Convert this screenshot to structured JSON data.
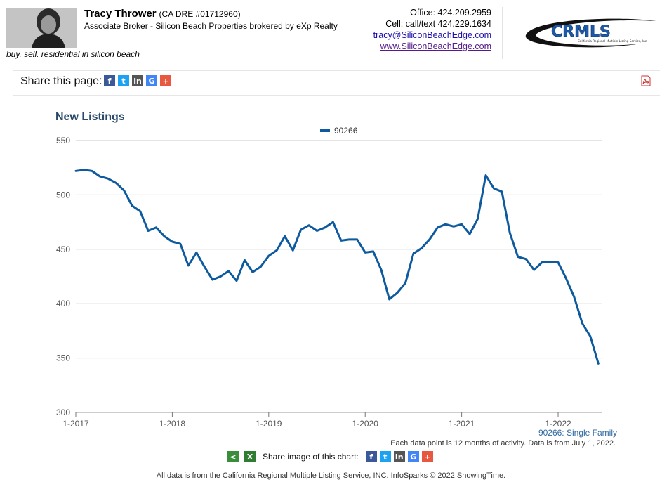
{
  "agent": {
    "name": "Tracy Thrower",
    "license": "(CA DRE #01712960)",
    "title": "Associate Broker - Silicon Beach Properties brokered by eXp Realty",
    "tagline": "buy. sell. residential in silicon beach",
    "office": "Office: 424.209.2959",
    "cell": "Cell: call/text 424.229.1634",
    "email": "tracy@SiliconBeachEdge.com",
    "website": "www.SiliconBeachEdge.com"
  },
  "logo": {
    "text": "CRMLS",
    "subtext": "California Regional Multiple Listing Service, Inc."
  },
  "share_bar": {
    "label": "Share this page:",
    "icons": [
      "facebook-icon",
      "twitter-icon",
      "linkedin-icon",
      "google-icon",
      "more-icon"
    ]
  },
  "chart_data": {
    "type": "line",
    "title": "New Listings",
    "xlabel": "",
    "ylabel": "",
    "ylim": [
      300,
      550
    ],
    "y_ticks": [
      300,
      350,
      400,
      450,
      500,
      550
    ],
    "x_ticks": [
      "1-2017",
      "1-2018",
      "1-2019",
      "1-2020",
      "1-2021",
      "1-2022"
    ],
    "x_start": "1-2017",
    "x_end": "6-2022",
    "grid": true,
    "legend_position": "top-center",
    "series": [
      {
        "name": "90266",
        "color": "#0d5a9e",
        "x": [
          "1-2017",
          "2-2017",
          "3-2017",
          "4-2017",
          "5-2017",
          "6-2017",
          "7-2017",
          "8-2017",
          "9-2017",
          "10-2017",
          "11-2017",
          "12-2017",
          "1-2018",
          "2-2018",
          "3-2018",
          "4-2018",
          "5-2018",
          "6-2018",
          "7-2018",
          "8-2018",
          "9-2018",
          "10-2018",
          "11-2018",
          "12-2018",
          "1-2019",
          "2-2019",
          "3-2019",
          "4-2019",
          "5-2019",
          "6-2019",
          "7-2019",
          "8-2019",
          "9-2019",
          "10-2019",
          "11-2019",
          "12-2019",
          "1-2020",
          "2-2020",
          "3-2020",
          "4-2020",
          "5-2020",
          "6-2020",
          "7-2020",
          "8-2020",
          "9-2020",
          "10-2020",
          "11-2020",
          "12-2020",
          "1-2021",
          "2-2021",
          "3-2021",
          "4-2021",
          "5-2021",
          "6-2021",
          "7-2021",
          "8-2021",
          "9-2021",
          "10-2021",
          "11-2021",
          "12-2021",
          "1-2022",
          "2-2022",
          "3-2022",
          "4-2022",
          "5-2022",
          "6-2022"
        ],
        "values": [
          522,
          523,
          522,
          517,
          515,
          511,
          504,
          490,
          485,
          467,
          470,
          462,
          457,
          455,
          435,
          447,
          434,
          422,
          425,
          430,
          421,
          440,
          429,
          434,
          444,
          449,
          462,
          449,
          468,
          472,
          467,
          470,
          475,
          458,
          459,
          459,
          447,
          448,
          431,
          404,
          410,
          419,
          446,
          451,
          459,
          470,
          473,
          471,
          473,
          464,
          478,
          518,
          506,
          503,
          465,
          443,
          441,
          431,
          438,
          438,
          438,
          423,
          406,
          382,
          370,
          345
        ]
      }
    ]
  },
  "chart_meta": {
    "series_label": "90266: Single Family",
    "note": "Each data point is 12 months of activity. Data is from July 1, 2022."
  },
  "share_image": {
    "label": "Share image of this chart:"
  },
  "footer": {
    "text": "All data is from the California Regional Multiple Listing Service, INC. InfoSparks © 2022 ShowingTime."
  }
}
